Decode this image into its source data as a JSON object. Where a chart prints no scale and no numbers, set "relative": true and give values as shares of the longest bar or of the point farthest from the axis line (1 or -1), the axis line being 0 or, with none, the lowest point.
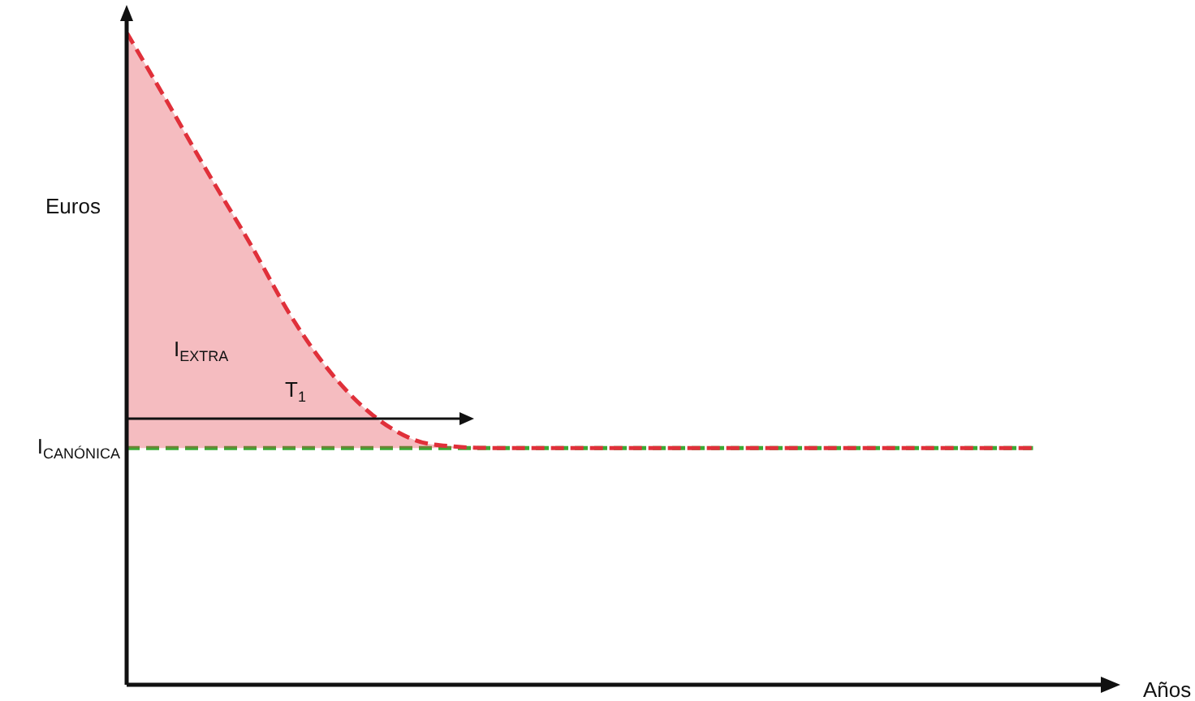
{
  "chart_data": {
    "type": "line",
    "relative": true,
    "xlabel": "Años",
    "ylabel": "Euros",
    "line_style": "dashed",
    "marker": "none",
    "legend": false,
    "categories": [
      null,
      null,
      null,
      null,
      null,
      null,
      null,
      null,
      null,
      null,
      null,
      null,
      null,
      null,
      null,
      null,
      null,
      null,
      null,
      null,
      null,
      null,
      null,
      null,
      null
    ],
    "annotations": [
      "I$_{EXTRA}$",
      "T$_{1}$"
    ],
    "series": [
      {
        "type": "area",
        "color": "#e0303a",
        "values": [
          1.0,
          0.892,
          0.782,
          0.676,
          0.564,
          0.475,
          0.412,
          0.375,
          0.365,
          0.363,
          0.363,
          0.363,
          0.363,
          0.363,
          0.363,
          0.363,
          0.363,
          0.363,
          0.363,
          0.363,
          0.363,
          0.363,
          0.363,
          null,
          null
        ]
      },
      {
        "name": "I$_{CANÓNICA}$",
        "color": "#3aaa35",
        "values": [
          0.363,
          0.363,
          0.363,
          0.363,
          0.363,
          0.363,
          0.363,
          0.363,
          0.363,
          0.363,
          0.363,
          0.363,
          0.363,
          0.363,
          0.363,
          0.363,
          0.363,
          0.363,
          0.363,
          0.363,
          0.363,
          0.363,
          0.363,
          null,
          null
        ]
      }
    ]
  }
}
